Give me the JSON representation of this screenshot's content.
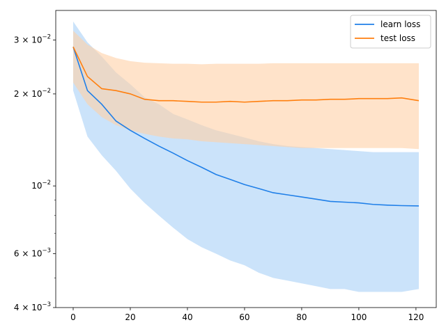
{
  "chart_data": {
    "type": "line",
    "title": "",
    "xlabel": "",
    "ylabel": "",
    "xlim": [
      -6.1,
      127.1
    ],
    "ylim": [
      0.004,
      0.0375
    ],
    "yscale": "log",
    "grid": false,
    "legend_position": "top-right",
    "x_ticks": [
      0,
      20,
      40,
      60,
      80,
      100,
      120
    ],
    "x_tick_labels": [
      "0",
      "20",
      "40",
      "60",
      "80",
      "100",
      "120"
    ],
    "y_ticks": [
      0.004,
      0.006,
      0.01,
      0.02,
      0.03
    ],
    "y_tick_labels": [
      {
        "base": "4 × 10",
        "exp": "−3"
      },
      {
        "base": "6 × 10",
        "exp": "−3"
      },
      {
        "base": "10",
        "exp": "−2"
      },
      {
        "base": "2 × 10",
        "exp": "−2"
      },
      {
        "base": "3 × 10",
        "exp": "−2"
      }
    ],
    "x": [
      0,
      5,
      10,
      15,
      20,
      25,
      30,
      35,
      40,
      45,
      50,
      55,
      60,
      65,
      70,
      75,
      80,
      85,
      90,
      95,
      100,
      105,
      110,
      115,
      121
    ],
    "series": [
      {
        "name": "learn loss",
        "color": "#1f7fe8",
        "band_color": "#a9d0f7",
        "mean": [
          0.0285,
          0.0205,
          0.0185,
          0.0163,
          0.0152,
          0.0143,
          0.0135,
          0.0128,
          0.0121,
          0.0115,
          0.0109,
          0.0105,
          0.0101,
          0.0098,
          0.0095,
          0.00935,
          0.0092,
          0.00905,
          0.0089,
          0.00885,
          0.0088,
          0.0087,
          0.00865,
          0.00862,
          0.0086
        ],
        "lower": [
          0.0205,
          0.0145,
          0.0126,
          0.0112,
          0.0098,
          0.0088,
          0.008,
          0.0073,
          0.0067,
          0.0063,
          0.006,
          0.0057,
          0.0055,
          0.0052,
          0.005,
          0.0049,
          0.0048,
          0.0047,
          0.0046,
          0.0046,
          0.0045,
          0.0045,
          0.0045,
          0.0045,
          0.0046
        ],
        "upper": [
          0.0345,
          0.0295,
          0.0265,
          0.0235,
          0.0215,
          0.0195,
          0.0185,
          0.0172,
          0.0165,
          0.0158,
          0.0152,
          0.0148,
          0.0144,
          0.014,
          0.0137,
          0.0135,
          0.0134,
          0.0133,
          0.0132,
          0.0131,
          0.013,
          0.0129,
          0.0129,
          0.0129,
          0.0129
        ]
      },
      {
        "name": "test loss",
        "color": "#ff7f0e",
        "band_color": "#ffd0a6",
        "mean": [
          0.0285,
          0.0228,
          0.0208,
          0.0205,
          0.02,
          0.0192,
          0.019,
          0.019,
          0.0189,
          0.0188,
          0.0188,
          0.0189,
          0.0188,
          0.0189,
          0.019,
          0.019,
          0.0191,
          0.0191,
          0.0192,
          0.0192,
          0.0193,
          0.0193,
          0.0193,
          0.0194,
          0.019
        ],
        "lower": [
          0.0218,
          0.0185,
          0.0168,
          0.0158,
          0.0152,
          0.0148,
          0.0145,
          0.0143,
          0.0142,
          0.014,
          0.0139,
          0.0138,
          0.0137,
          0.0136,
          0.0135,
          0.0134,
          0.0133,
          0.0133,
          0.0133,
          0.0133,
          0.0133,
          0.0133,
          0.0133,
          0.0133,
          0.0132
        ],
        "upper": [
          0.0322,
          0.029,
          0.0272,
          0.0262,
          0.0256,
          0.0253,
          0.0252,
          0.0251,
          0.0251,
          0.025,
          0.0251,
          0.0251,
          0.0251,
          0.0251,
          0.0252,
          0.0252,
          0.0252,
          0.0252,
          0.0252,
          0.0252,
          0.0252,
          0.0252,
          0.0252,
          0.0252,
          0.0252
        ]
      }
    ]
  }
}
